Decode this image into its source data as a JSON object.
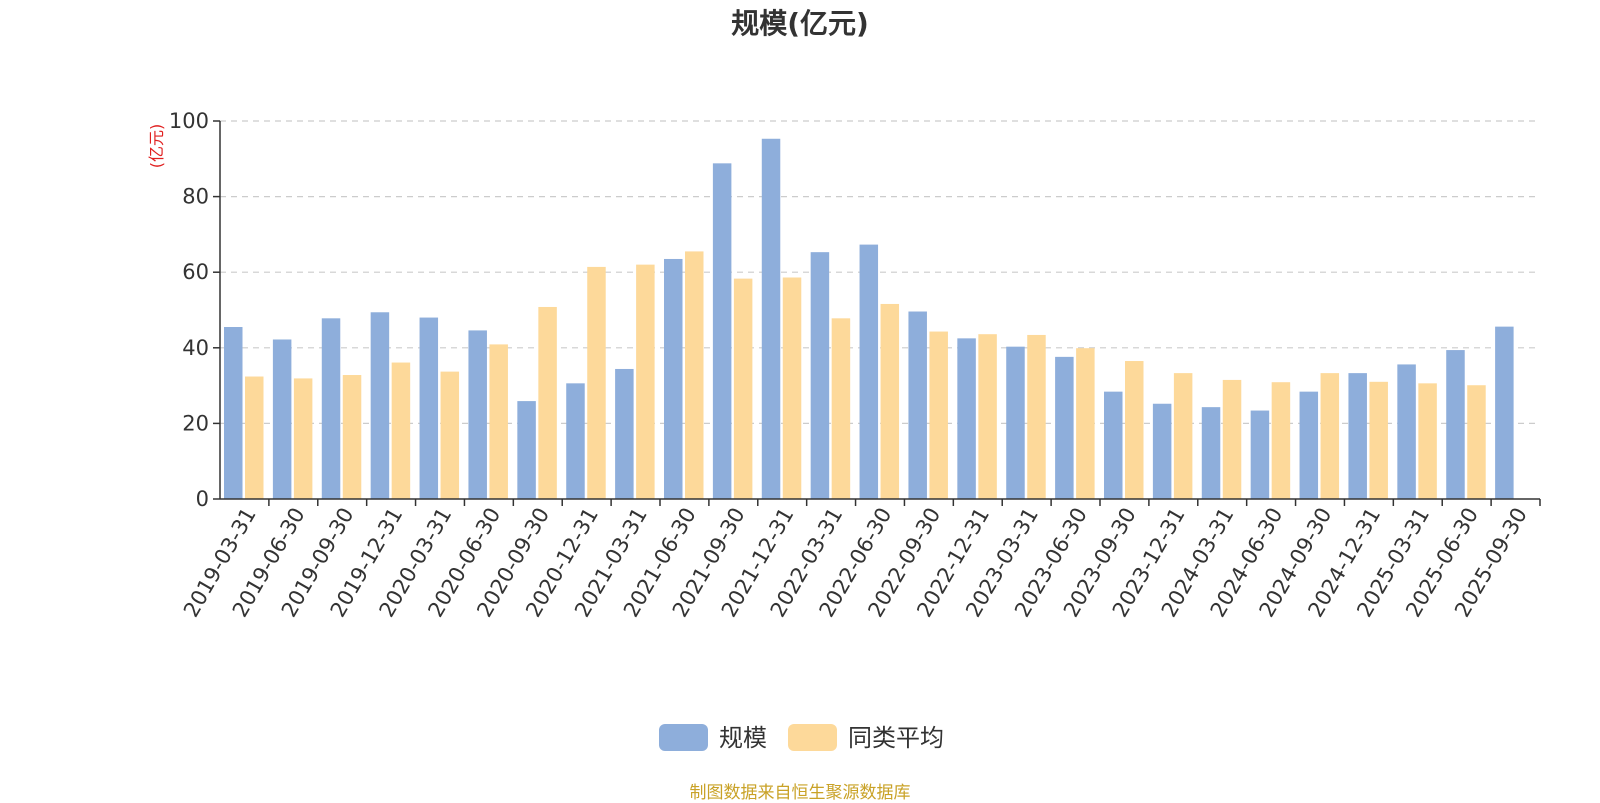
{
  "chart_data": {
    "type": "bar",
    "title": "规模(亿元)",
    "ylabel": "(亿元)",
    "xlabel": "",
    "ylim": [
      0,
      100
    ],
    "yticks": [
      0,
      20,
      40,
      60,
      80,
      100
    ],
    "grid": true,
    "legend_position": "bottom-center",
    "categories": [
      "2019-03-31",
      "2019-06-30",
      "2019-09-30",
      "2019-12-31",
      "2020-03-31",
      "2020-06-30",
      "2020-09-30",
      "2020-12-31",
      "2021-03-31",
      "2021-06-30",
      "2021-09-30",
      "2021-12-31",
      "2022-03-31",
      "2022-06-30",
      "2022-09-30",
      "2022-12-31",
      "2023-03-31",
      "2023-06-30",
      "2023-09-30",
      "2023-12-31",
      "2024-03-31",
      "2024-06-30",
      "2024-09-30",
      "2024-12-31",
      "2025-03-31",
      "2025-06-30",
      "2025-09-30"
    ],
    "series": [
      {
        "name": "规模",
        "color": "#8eaedb",
        "values": [
          45.5,
          42.2,
          47.8,
          49.4,
          48.0,
          44.6,
          25.9,
          30.6,
          34.4,
          63.5,
          88.8,
          95.3,
          65.3,
          67.3,
          49.6,
          42.5,
          40.3,
          37.6,
          28.4,
          25.2,
          24.3,
          23.4,
          28.4,
          33.3,
          35.6,
          39.4,
          45.6
        ]
      },
      {
        "name": "同类平均",
        "color": "#fdd99a",
        "values": [
          32.4,
          31.9,
          32.8,
          36.1,
          33.7,
          40.9,
          50.8,
          61.4,
          62.0,
          65.5,
          58.3,
          58.6,
          47.8,
          51.6,
          44.3,
          43.6,
          43.4,
          39.9,
          36.5,
          33.3,
          31.5,
          30.9,
          33.3,
          31.0,
          30.6,
          30.1,
          null
        ]
      }
    ]
  },
  "footer": {
    "source": "制图数据来自恒生聚源数据库"
  }
}
